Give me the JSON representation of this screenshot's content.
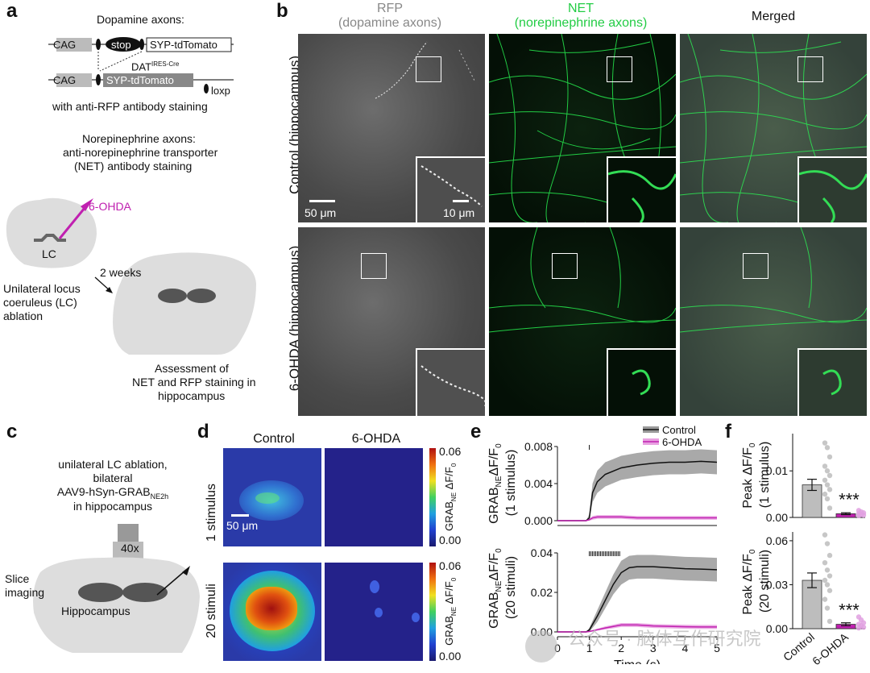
{
  "panel_a": {
    "letter": "a",
    "title_da": "Dopamine axons:",
    "cag1": "CAG",
    "stop": "stop",
    "syp1": "SYP-tdTomato",
    "dat": "DAT",
    "dat_sup": "IRES-Cre",
    "cag2": "CAG",
    "syp2": "SYP-tdTomato",
    "loxp": "loxp",
    "rfp_staining": "with anti-RFP antibody staining",
    "ne_title": "Norepinephrine axons:",
    "ne_line2": "anti-norepinephrine transporter",
    "ne_line3": "(NET) antibody staining",
    "drug": "6-OHDA",
    "lc": "LC",
    "weeks": "2 weeks",
    "ablation1": "Unilateral locus",
    "ablation2": "coeruleus (LC)",
    "ablation3": "ablation",
    "assess1": "Assessment of",
    "assess2": "NET and RFP staining in",
    "assess3": "hippocampus"
  },
  "panel_b": {
    "letter": "b",
    "col1_line1": "RFP",
    "col1_line2": "(dopamine axons)",
    "col2_line1": "NET",
    "col2_line2": "(norepinephrine axons)",
    "col3": "Merged",
    "row1": "Control (hippocampus)",
    "row2": "6-OHDA (hippocampus)",
    "scale_big": "50 μm",
    "scale_small": "10 μm"
  },
  "panel_c": {
    "letter": "c",
    "line1": "unilateral LC ablation,",
    "line2": "bilateral",
    "line3": "AAV9-hSyn-GRAB",
    "line3_sub": "NE2h",
    "line4": "in hippocampus",
    "objective": "40x",
    "slice": "Slice",
    "imaging": "imaging",
    "hippocampus": "Hippocampus"
  },
  "panel_d": {
    "letter": "d",
    "col1": "Control",
    "col2": "6-OHDA",
    "row1": "1 stimulus",
    "row2": "20 stimuli",
    "scale": "50 μm",
    "cbar_label": "GRAB",
    "cbar_sub": "NE",
    "cbar_label2": "ΔF/F",
    "cbar_sub2": "0",
    "cbar_top": "0.06",
    "cbar_bottom": "0.00"
  },
  "panel_e": {
    "letter": "e",
    "legend_control": "Control",
    "legend_ohda": "6-OHDA",
    "ylabel_top_a": "GRAB",
    "ylabel_top_sub": "NE",
    "ylabel_top_b": "ΔF/F",
    "ylabel_top_sub2": "0",
    "ylabel_top_c": "(1 stimulus)",
    "ylabel_bot_c": "(20 stimuli)",
    "xlabel": "Time (s)"
  },
  "panel_f": {
    "letter": "f",
    "ylabel_top": "Peak ΔF/F",
    "ylabel_sub": "0",
    "ylabel_top_c": "(1 stimulus)",
    "ylabel_bot_c": "(20 stimuli)",
    "sig": "***",
    "cat1": "Control",
    "cat2": "6-OHDA"
  },
  "watermark": "公众号 · 脑体互作研究院",
  "colors": {
    "control": "#111111",
    "control_band": "#9a9a9a",
    "ohda": "#c020b0",
    "ohda_band": "#e8a0e0",
    "net_green": "#22cc44",
    "rfp_title_grey": "#888888"
  },
  "chart_data": [
    {
      "type": "line",
      "title": "",
      "xlabel": "",
      "ylabel": "GRAB_NE ΔF/F0 (1 stimulus)",
      "xlim": [
        0,
        5
      ],
      "ylim": [
        0,
        0.008
      ],
      "yticks": [
        "0.000",
        "0.004",
        "0.008"
      ],
      "stim_times": [
        1.0
      ],
      "series": [
        {
          "name": "Control",
          "x": [
            0,
            0.9,
            1.0,
            1.1,
            1.25,
            1.5,
            2.0,
            2.5,
            3.0,
            3.5,
            4.0,
            4.5,
            5.0
          ],
          "y": [
            0,
            0,
            0.0003,
            0.003,
            0.0042,
            0.005,
            0.0057,
            0.006,
            0.0062,
            0.0063,
            0.0063,
            0.0064,
            0.0063
          ],
          "band": [
            0,
            0,
            0.0004,
            0.001,
            0.0012,
            0.0013,
            0.0013,
            0.0013,
            0.0013,
            0.0013,
            0.0013,
            0.0013,
            0.0013
          ]
        },
        {
          "name": "6-OHDA",
          "x": [
            0,
            0.9,
            1.0,
            1.1,
            1.25,
            1.5,
            2.0,
            2.5,
            3.0,
            3.5,
            4.0,
            4.5,
            5.0
          ],
          "y": [
            0,
            0,
            0.0001,
            0.0003,
            0.0004,
            0.0004,
            0.0004,
            0.0003,
            0.0003,
            0.0003,
            0.0003,
            0.0003,
            0.0003
          ],
          "band": [
            0,
            0,
            0.0001,
            0.0002,
            0.0002,
            0.0002,
            0.0002,
            0.0002,
            0.0002,
            0.0002,
            0.0002,
            0.0002,
            0.0002
          ]
        }
      ]
    },
    {
      "type": "line",
      "title": "",
      "xlabel": "Time (s)",
      "ylabel": "GRAB_NE ΔF/F0 (20 stimuli)",
      "xlim": [
        0,
        5
      ],
      "ylim": [
        0,
        0.04
      ],
      "xticks": [
        0,
        1,
        2,
        3,
        4,
        5
      ],
      "yticks": [
        "0.00",
        "0.02",
        "0.04"
      ],
      "stim_times": [
        1.0,
        1.05,
        1.1,
        1.15,
        1.2,
        1.25,
        1.3,
        1.35,
        1.4,
        1.45,
        1.5,
        1.55,
        1.6,
        1.65,
        1.7,
        1.75,
        1.8,
        1.85,
        1.9,
        1.95
      ],
      "series": [
        {
          "name": "Control",
          "x": [
            0,
            0.9,
            1.0,
            1.25,
            1.5,
            1.75,
            2.0,
            2.25,
            2.5,
            3.0,
            3.5,
            4.0,
            4.5,
            5.0
          ],
          "y": [
            0,
            0,
            0.001,
            0.008,
            0.016,
            0.024,
            0.03,
            0.0325,
            0.033,
            0.033,
            0.0325,
            0.032,
            0.0318,
            0.0315
          ],
          "band": [
            0,
            0,
            0.001,
            0.003,
            0.004,
            0.005,
            0.006,
            0.006,
            0.006,
            0.006,
            0.006,
            0.006,
            0.006,
            0.006
          ]
        },
        {
          "name": "6-OHDA",
          "x": [
            0,
            0.9,
            1.0,
            1.5,
            2.0,
            2.5,
            3.0,
            3.5,
            4.0,
            4.5,
            5.0
          ],
          "y": [
            0,
            0,
            0.0002,
            0.002,
            0.0035,
            0.0035,
            0.003,
            0.0028,
            0.0026,
            0.0025,
            0.0025
          ],
          "band": [
            0,
            0,
            0.0002,
            0.0008,
            0.001,
            0.001,
            0.001,
            0.001,
            0.001,
            0.001,
            0.001
          ]
        }
      ]
    },
    {
      "type": "bar",
      "title": "",
      "ylabel": "Peak ΔF/F0 (1 stimulus)",
      "categories": [
        "Control",
        "6-OHDA"
      ],
      "ylim": [
        0,
        0.018
      ],
      "yticks": [
        "0.00",
        "0.01"
      ],
      "values": [
        0.007,
        0.0008
      ],
      "errors": [
        0.0012,
        0.0002
      ],
      "points": [
        [
          0.016,
          0.015,
          0.013,
          0.011,
          0.01,
          0.009,
          0.008,
          0.007,
          0.006,
          0.005,
          0.004,
          0.002
        ],
        [
          0.0015,
          0.0012,
          0.001,
          0.0008,
          0.0006,
          0.0005,
          0.0004
        ]
      ]
    },
    {
      "type": "bar",
      "title": "",
      "xlabel": "",
      "ylabel": "Peak ΔF/F0 (20 stimuli)",
      "categories": [
        "Control",
        "6-OHDA"
      ],
      "ylim": [
        0,
        0.066
      ],
      "yticks": [
        "0.00",
        "0.03",
        "0.06"
      ],
      "values": [
        0.033,
        0.003
      ],
      "errors": [
        0.005,
        0.001
      ],
      "points": [
        [
          0.064,
          0.058,
          0.05,
          0.045,
          0.04,
          0.036,
          0.033,
          0.03,
          0.026,
          0.02,
          0.014,
          0.005
        ],
        [
          0.008,
          0.006,
          0.004,
          0.003,
          0.002,
          0.001,
          0.0005
        ]
      ]
    }
  ]
}
